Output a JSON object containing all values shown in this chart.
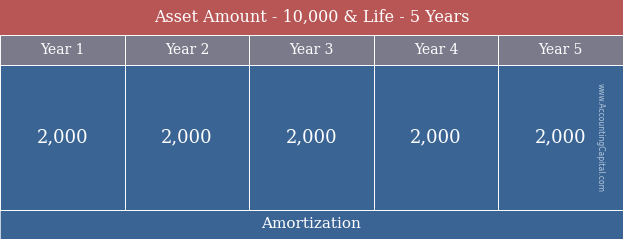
{
  "title": "Asset Amount - 10,000 & Life - 5 Years",
  "footer": "Amortization",
  "years": [
    "Year 1",
    "Year 2",
    "Year 3",
    "Year 4",
    "Year 5"
  ],
  "values": [
    "2,000",
    "2,000",
    "2,000",
    "2,000",
    "2,000"
  ],
  "watermark": "www.AccountingCapital.com",
  "title_bg": "#b85555",
  "header_bg": "#7a7a8a",
  "cell_bg": "#3a6494",
  "footer_bg": "#3a6494",
  "title_color": "#ffffff",
  "header_color": "#ffffff",
  "cell_color": "#ffffff",
  "footer_color": "#ffffff",
  "border_color": "#ffffff",
  "title_fontsize": 11.5,
  "header_fontsize": 10,
  "value_fontsize": 13,
  "footer_fontsize": 11,
  "watermark_fontsize": 5.5,
  "fig_width": 6.23,
  "fig_height": 2.39,
  "dpi": 100
}
